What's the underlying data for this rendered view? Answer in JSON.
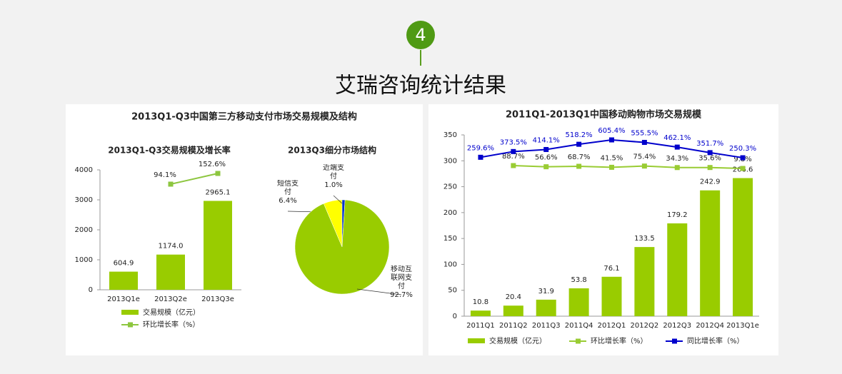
{
  "header": {
    "step": "4",
    "title": "艾瑞咨询统计结果"
  },
  "left_title": "2013Q1-Q3中国第三方移动支付市场交易规模及结构",
  "chart_data": [
    {
      "type": "bar",
      "title": "2013Q1-Q3交易规模及增长率",
      "categories": [
        "2013Q1e",
        "2013Q2e",
        "2013Q3e"
      ],
      "series": [
        {
          "name": "交易规模（亿元）",
          "color": "#99cc00",
          "values": [
            604.9,
            1174.0,
            2965.1
          ],
          "value_labels": [
            "604.9",
            "1174.0",
            "2965.1"
          ]
        },
        {
          "name": "环比增长率（%）",
          "type": "line",
          "color": "#8dc63f",
          "values": [
            null,
            94.1,
            152.6
          ],
          "value_labels": [
            null,
            "94.1%",
            "152.6%"
          ]
        }
      ],
      "ylim": [
        0,
        4000
      ],
      "yticks": [
        0,
        1000,
        2000,
        3000,
        4000
      ]
    },
    {
      "type": "pie",
      "title": "2013Q3细分市场结构",
      "categories": [
        "短信支付",
        "近端支付",
        "移动互联网支付"
      ],
      "values": [
        6.4,
        1.0,
        92.7
      ],
      "value_labels": [
        "6.4%",
        "1.0%",
        "92.7%"
      ],
      "colors": [
        "#ffff00",
        "#0033cc",
        "#99cc00"
      ]
    },
    {
      "type": "bar",
      "title": "2011Q1-2013Q1中国移动购物市场交易规模",
      "categories": [
        "2011Q1",
        "2011Q2",
        "2011Q3",
        "2011Q4",
        "2012Q1",
        "2012Q2",
        "2012Q3",
        "2012Q4",
        "2013Q1e"
      ],
      "series": [
        {
          "name": "交易规模（亿元）",
          "color": "#99cc00",
          "values": [
            10.8,
            20.4,
            31.9,
            53.8,
            76.1,
            133.5,
            179.2,
            242.9,
            266.6
          ]
        },
        {
          "name": "环比增长率（%）",
          "type": "line",
          "color": "#99cc33",
          "values": [
            null,
            88.7,
            56.6,
            68.7,
            41.5,
            75.4,
            34.3,
            35.6,
            9.8
          ],
          "value_labels": [
            null,
            "88.7%",
            "56.6%",
            "68.7%",
            "41.5%",
            "75.4%",
            "34.3%",
            "35.6%",
            "9.8%"
          ]
        },
        {
          "name": "同比增长率（%）",
          "type": "line",
          "color": "#0000cc",
          "values": [
            259.6,
            373.5,
            414.1,
            518.2,
            605.4,
            555.5,
            462.1,
            351.7,
            250.3
          ],
          "value_labels": [
            "259.6%",
            "373.5%",
            "414.1%",
            "518.2%",
            "605.4%",
            "555.5%",
            "462.1%",
            "351.7%",
            "250.3%"
          ]
        }
      ],
      "ylim": [
        0,
        350
      ],
      "yticks": [
        0,
        50,
        100,
        150,
        200,
        250,
        300,
        350
      ]
    }
  ]
}
